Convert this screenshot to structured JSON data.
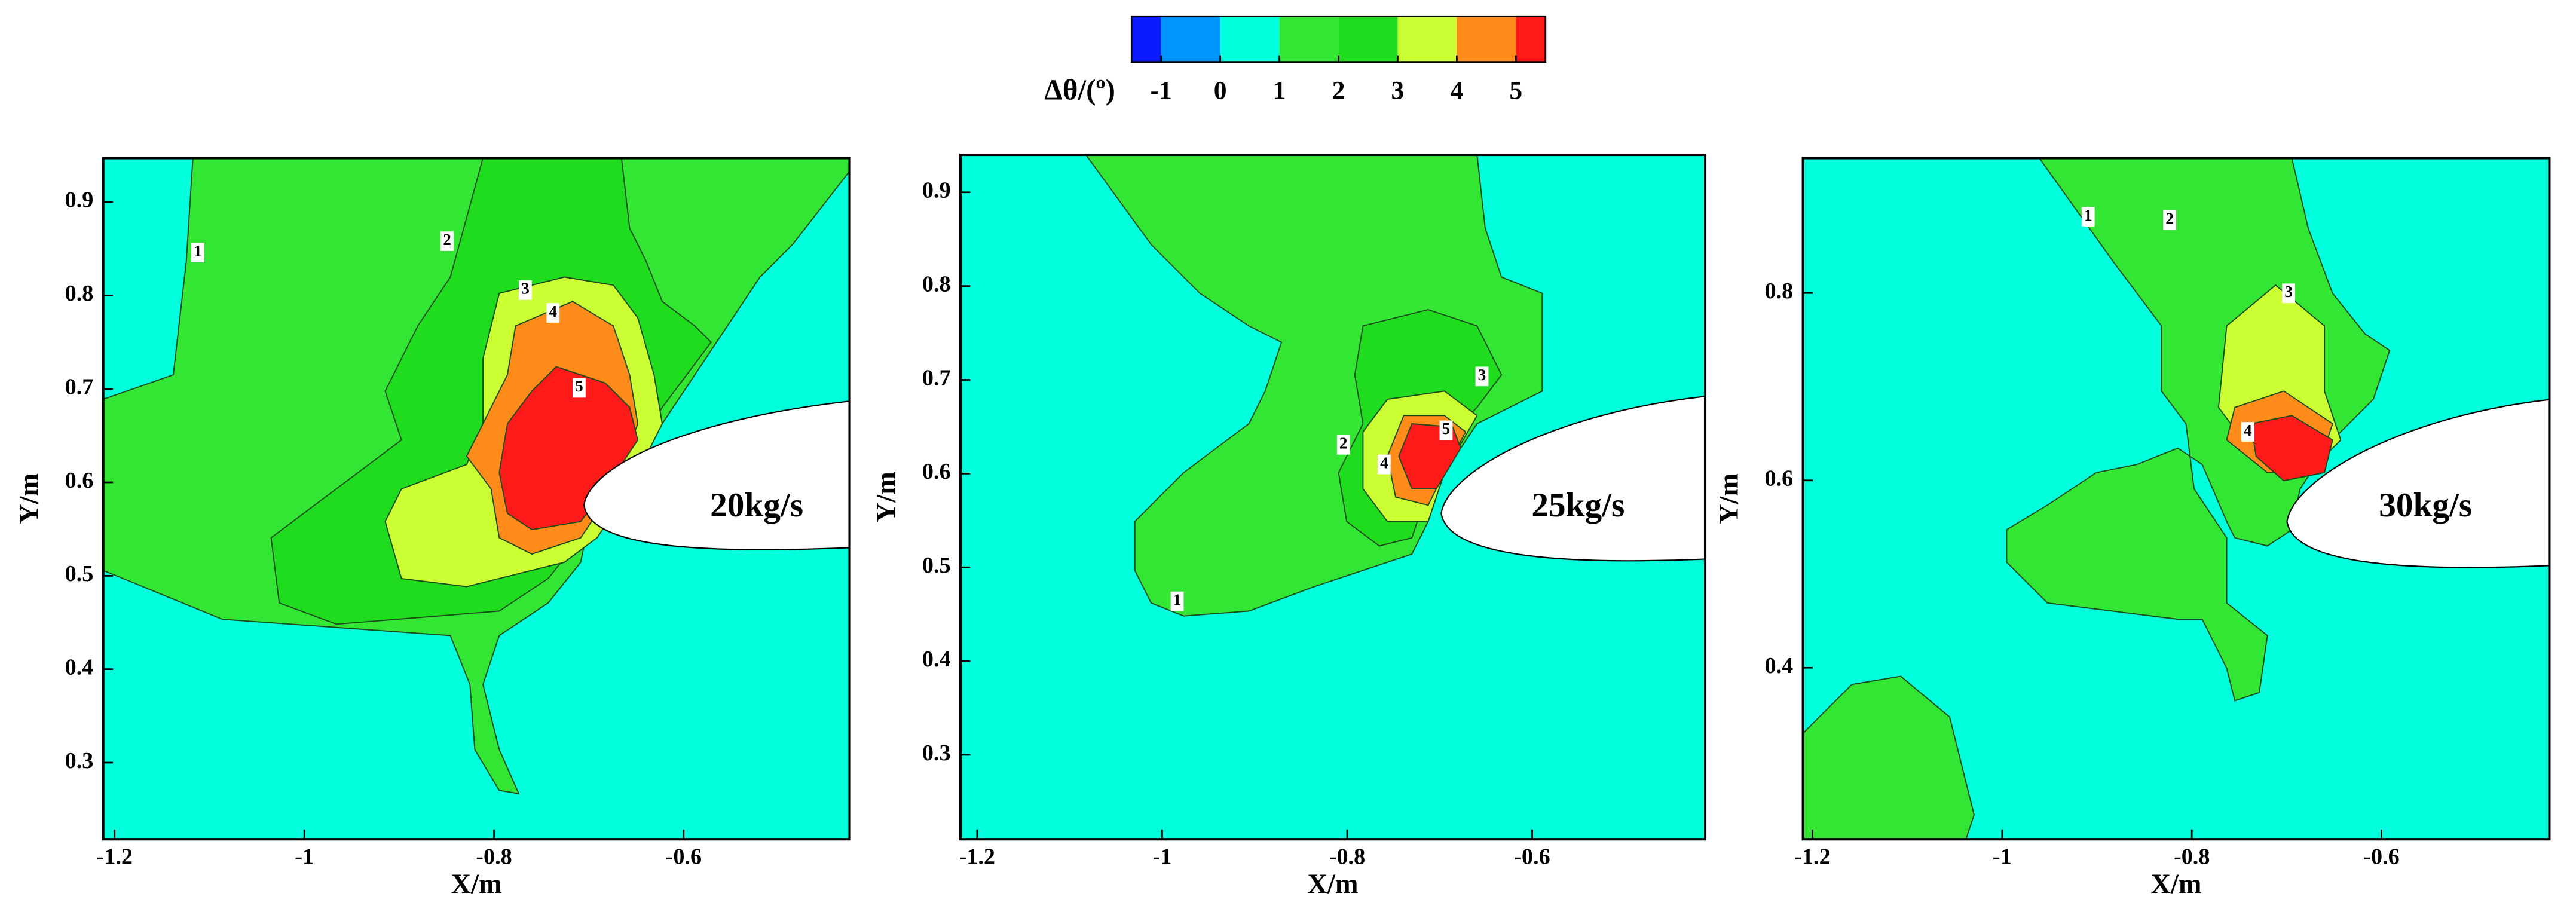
{
  "chart_data": [
    {
      "type": "colorbar",
      "label": "Δθ/(º)",
      "clim": [
        -1.5,
        5.5
      ],
      "levels": [
        -1.5,
        -1,
        0,
        1,
        2,
        3,
        4,
        5,
        5.5
      ],
      "colors": [
        "#0a1cff",
        "#0096ff",
        "#00ffdc",
        "#33e633",
        "#1fdc1f",
        "#ccff33",
        "#ff8c1a",
        "#ff1a1a"
      ],
      "ticks": [
        -1,
        0,
        1,
        2,
        3,
        4,
        5
      ]
    },
    {
      "type": "contour",
      "xlabel": "X/m",
      "ylabel": "Y/m",
      "annotation": "20kg/s",
      "xlim": [
        -1.212,
        -0.425
      ],
      "ylim": [
        0.218,
        0.947
      ],
      "xticks": [
        -1.2,
        -1,
        -0.8,
        -0.6
      ],
      "yticks": [
        0.3,
        0.4,
        0.5,
        0.6,
        0.7,
        0.8,
        0.9
      ],
      "contour_labels": [
        1,
        2,
        3,
        4,
        5
      ]
    },
    {
      "type": "contour",
      "xlabel": "X/m",
      "ylabel": "Y/m",
      "annotation": "25kg/s",
      "xlim": [
        -1.218,
        -0.413
      ],
      "ylim": [
        0.21,
        0.94
      ],
      "xticks": [
        -1.2,
        -1,
        -0.8,
        -0.6
      ],
      "yticks": [
        0.3,
        0.4,
        0.5,
        0.6,
        0.7,
        0.8,
        0.9
      ],
      "contour_labels": [
        1,
        2,
        3,
        4,
        5
      ]
    },
    {
      "type": "contour",
      "xlabel": "X/m",
      "ylabel": "Y/m",
      "annotation": "30kg/s",
      "xlim": [
        -1.21,
        -0.423
      ],
      "ylim": [
        0.217,
        0.944
      ],
      "xticks": [
        -1.2,
        -1,
        -0.8,
        -0.6
      ],
      "yticks": [
        0.4,
        0.6,
        0.8
      ],
      "contour_labels": [
        1,
        2,
        3,
        4
      ]
    }
  ]
}
